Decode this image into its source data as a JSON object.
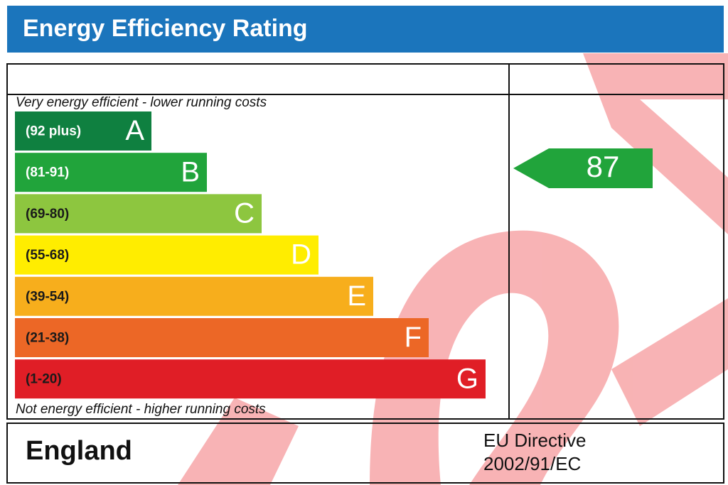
{
  "header": {
    "title": "Energy Efficiency Rating"
  },
  "top_note": "Very energy efficient - lower running costs",
  "bottom_note": "Not energy efficient - higher running costs",
  "bands": [
    {
      "range": "(92 plus)",
      "letter": "A",
      "color": "#0f8040",
      "text_color": "#ffffff"
    },
    {
      "range": "(81-91)",
      "letter": "B",
      "color": "#21a43b",
      "text_color": "#ffffff"
    },
    {
      "range": "(69-80)",
      "letter": "C",
      "color": "#8dc63f",
      "text_color": "#1a1a1a"
    },
    {
      "range": "(55-68)",
      "letter": "D",
      "color": "#ffed00",
      "text_color": "#1a1a1a"
    },
    {
      "range": "(39-54)",
      "letter": "E",
      "color": "#f7ae1c",
      "text_color": "#1a1a1a"
    },
    {
      "range": "(21-38)",
      "letter": "F",
      "color": "#ec6726",
      "text_color": "#1a1a1a"
    },
    {
      "range": "(1-20)",
      "letter": "G",
      "color": "#e01e26",
      "text_color": "#1a1a1a"
    }
  ],
  "rating": {
    "value": 87,
    "color": "#21a43b"
  },
  "footer": {
    "country": "England",
    "directive_line1": "EU Directive",
    "directive_line2": "2002/91/EC"
  }
}
